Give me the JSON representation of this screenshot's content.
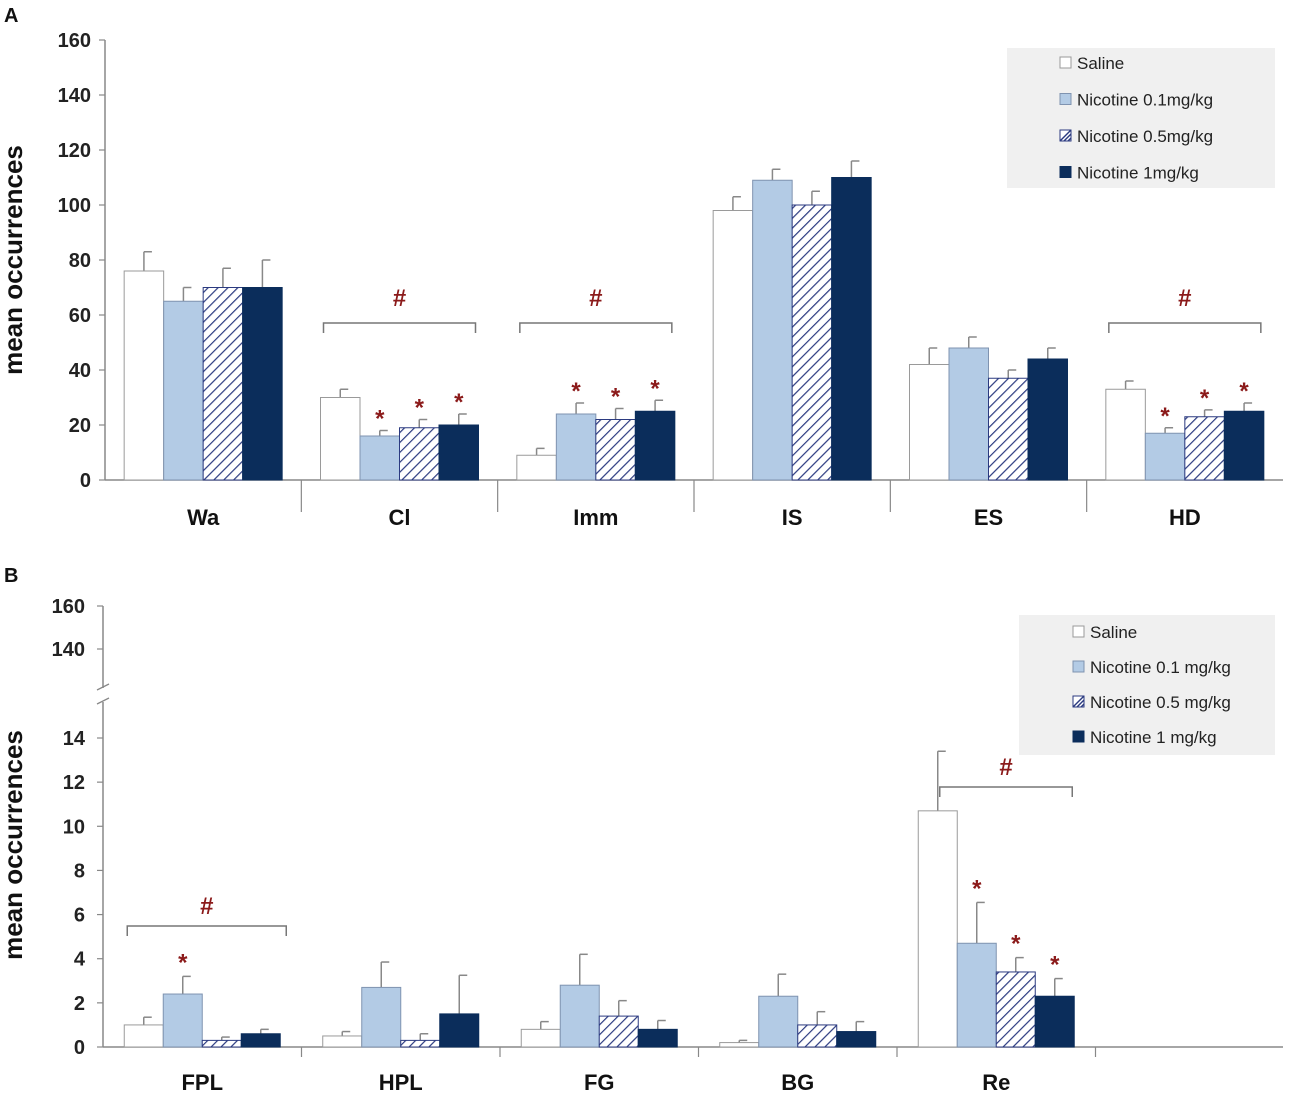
{
  "chart_data": [
    {
      "panel": "A",
      "type": "bar",
      "ylabel": "mean occurrences",
      "ylim": [
        0,
        160
      ],
      "yticks": [
        0,
        20,
        40,
        60,
        80,
        100,
        120,
        140,
        160
      ],
      "categories": [
        "Wa",
        "Cl",
        "Imm",
        "IS",
        "ES",
        "HD"
      ],
      "series": [
        {
          "name": "Saline",
          "values": [
            76,
            30,
            9,
            98,
            42,
            33
          ],
          "errors": [
            7,
            3,
            2.5,
            5,
            6,
            3
          ]
        },
        {
          "name": "Nicotine 0.1mg/kg",
          "values": [
            65,
            16,
            24,
            109,
            48,
            17
          ],
          "errors": [
            5,
            2,
            4,
            4,
            4,
            2
          ]
        },
        {
          "name": "Nicotine 0.5mg/kg",
          "values": [
            70,
            19,
            22,
            100,
            37,
            23
          ],
          "errors": [
            7,
            3,
            4,
            5,
            3,
            2.5
          ]
        },
        {
          "name": "Nicotine 1mg/kg",
          "values": [
            70,
            20,
            25,
            110,
            44,
            25
          ],
          "errors": [
            10,
            4,
            4,
            6,
            4,
            3
          ]
        }
      ],
      "significance": {
        "hash_categories": [
          "Cl",
          "Imm",
          "HD"
        ],
        "hash_symbol": "#",
        "star_symbol": "*",
        "stars": [
          {
            "category": "Cl",
            "series": [
              1,
              2,
              3
            ]
          },
          {
            "category": "Imm",
            "series": [
              1,
              2,
              3
            ]
          },
          {
            "category": "HD",
            "series": [
              1,
              2,
              3
            ]
          }
        ]
      },
      "legend_position": "top-right"
    },
    {
      "panel": "B",
      "type": "bar",
      "ylabel": "mean occurrences",
      "ylim": [
        0,
        160
      ],
      "axis_break": [
        14,
        140
      ],
      "yticks_lower": [
        0,
        2,
        4,
        6,
        8,
        10,
        12,
        14
      ],
      "yticks_upper": [
        140,
        160
      ],
      "categories": [
        "FPL",
        "HPL",
        "FG",
        "BG",
        "Re"
      ],
      "series": [
        {
          "name": "Saline",
          "values": [
            1.0,
            0.5,
            0.8,
            0.2,
            10.7
          ],
          "errors": [
            0.35,
            0.2,
            0.35,
            0.1,
            2.7
          ]
        },
        {
          "name": "Nicotine 0.1 mg/kg",
          "values": [
            2.4,
            2.7,
            2.8,
            2.3,
            4.7
          ],
          "errors": [
            0.8,
            1.15,
            1.4,
            1.0,
            1.85
          ]
        },
        {
          "name": "Nicotine 0.5 mg/kg",
          "values": [
            0.3,
            0.3,
            1.4,
            1.0,
            3.4
          ],
          "errors": [
            0.15,
            0.3,
            0.7,
            0.6,
            0.65
          ]
        },
        {
          "name": "Nicotine 1 mg/kg",
          "values": [
            0.6,
            1.5,
            0.8,
            0.7,
            2.3
          ],
          "errors": [
            0.2,
            1.75,
            0.4,
            0.45,
            0.8
          ]
        }
      ],
      "significance": {
        "hash_categories": [
          "FPL",
          "Re"
        ],
        "hash_symbol": "#",
        "star_symbol": "*",
        "stars": [
          {
            "category": "FPL",
            "series": [
              1
            ]
          },
          {
            "category": "Re",
            "series": [
              1,
              2,
              3
            ]
          }
        ]
      },
      "legend_position": "top-right"
    }
  ],
  "colors": {
    "saline": "#ffffff",
    "nic_low": "#b3cbe5",
    "hatch": "#2b3a80",
    "nic_high": "#0b2d5b",
    "sig": "#8b1a1a",
    "axis": "#888888",
    "legend_bg": "#f0f0f0"
  }
}
